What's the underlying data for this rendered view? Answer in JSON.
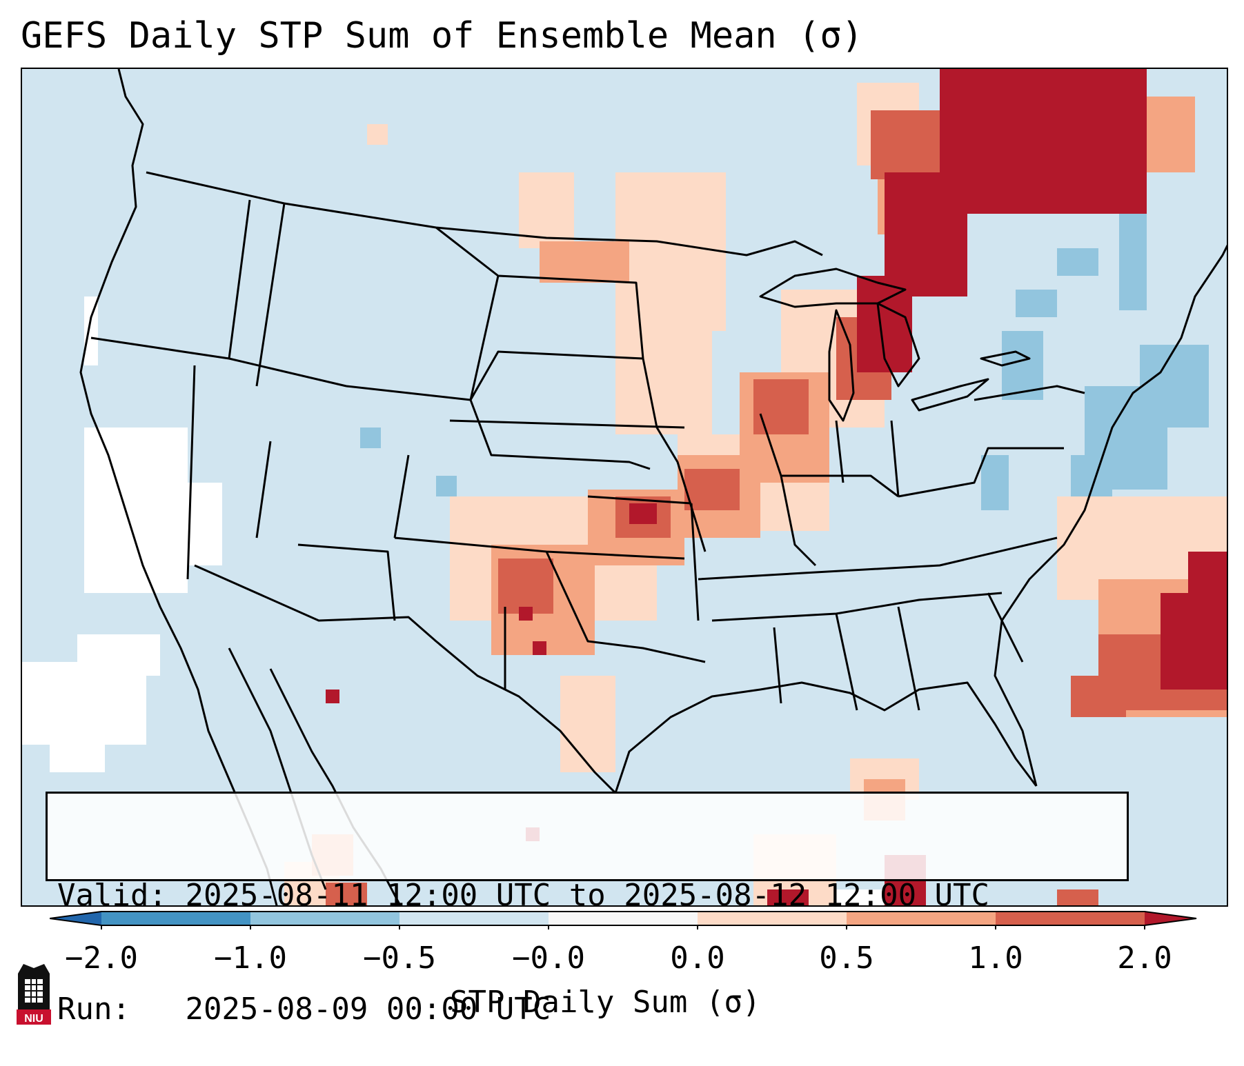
{
  "title": "GEFS Daily STP Sum of Ensemble Mean (σ)",
  "info_box": {
    "valid_label": "Valid:",
    "valid_value": "2025-08-11 12:00 UTC to 2025-08-12 12:00 UTC",
    "run_label": "Run:",
    "run_value": "2025-08-09 00:00 UTC"
  },
  "colorbar": {
    "label": "STP Daily Sum (σ)",
    "tick_labels": [
      "−2.0",
      "−1.0",
      "−0.5",
      "−0.0",
      "0.0",
      "0.5",
      "1.0",
      "2.0"
    ],
    "bins": [
      {
        "from": -2.0,
        "to": -1.0,
        "color": "#4393c3"
      },
      {
        "from": -1.0,
        "to": -0.5,
        "color": "#92c5de"
      },
      {
        "from": -0.5,
        "to": -0.0,
        "color": "#d1e5f0"
      },
      {
        "from": -0.0,
        "to": 0.0,
        "color": "#f7f7f7"
      },
      {
        "from": 0.0,
        "to": 0.5,
        "color": "#fddbc7"
      },
      {
        "from": 0.5,
        "to": 1.0,
        "color": "#f4a582"
      },
      {
        "from": 1.0,
        "to": 2.0,
        "color": "#d6604d"
      }
    ],
    "under_color": "#2166ac",
    "over_color": "#b2182b"
  },
  "map": {
    "region": "Contiguous United States",
    "background_color": "#d1e5f0",
    "features": [
      "state-borders",
      "coastlines",
      "country-borders"
    ],
    "anomaly_areas": [
      {
        "area": "Southern Ontario / Upper Michigan",
        "category": "> 2.0"
      },
      {
        "area": "Western Atlantic off Southeast coast",
        "category": "> 2.0"
      },
      {
        "area": "Iowa / Wisconsin / Missouri corridor",
        "category": "0.5 to 2.0"
      },
      {
        "area": "Kansas / Oklahoma / New Mexico",
        "category": "0.5 to 2.0"
      },
      {
        "area": "North Dakota / Minnesota",
        "category": "0.0 to 2.0"
      },
      {
        "area": "Mid-Atlantic coast / New England",
        "category": "-1.0 to -0.5"
      },
      {
        "area": "Pacific off California",
        "category": "-0.0 to 0.0"
      }
    ]
  },
  "logo": {
    "text": "NIU"
  }
}
